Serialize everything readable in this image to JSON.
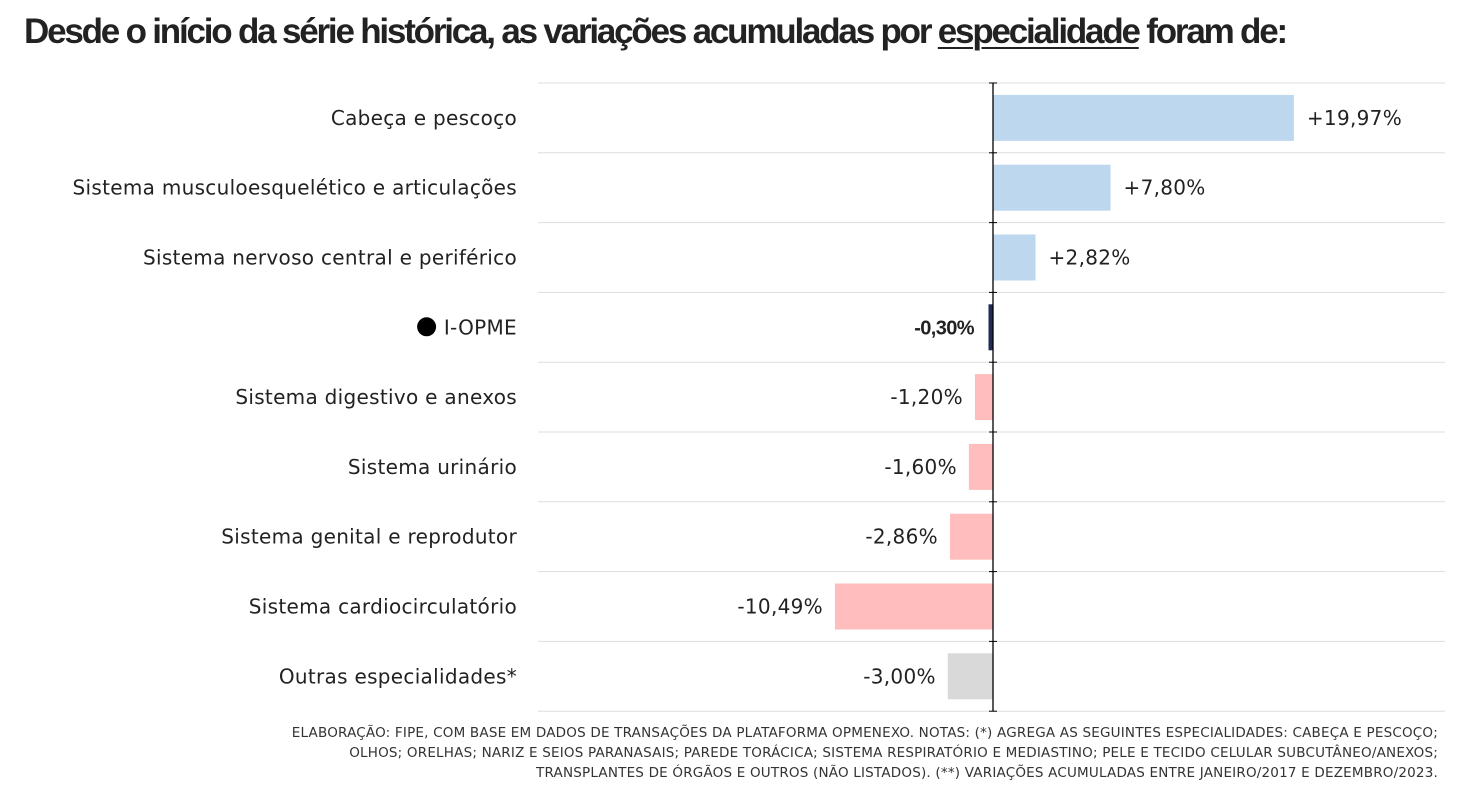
{
  "title": {
    "prefix": "Desde o início da série histórica, as variações acumuladas por ",
    "emphasis": "especialidade",
    "suffix": " foram de:"
  },
  "colors": {
    "positive": "#bdd7ee",
    "negative": "#ffbdbd",
    "highlight": "#1f2d54",
    "other": "#d9d9d9",
    "gridline": "#dddddd",
    "axis": "#000000",
    "text": "#222222"
  },
  "chart_data": {
    "type": "bar",
    "orientation": "horizontal",
    "categories": [
      "Cabeça e pescoço",
      "Sistema musculoesquelético e articulações",
      "Sistema nervoso central e periférico",
      "I-OPME",
      "Sistema digestivo e anexos",
      "Sistema urinário",
      "Sistema genital e reprodutor",
      "Sistema cardiocirculatório",
      "Outras especialidades*"
    ],
    "values": [
      19.97,
      7.8,
      2.82,
      -0.3,
      -1.2,
      -1.6,
      -2.86,
      -10.49,
      -3.0
    ],
    "value_labels": [
      "+19,97%",
      "+7,80%",
      "+2,82%",
      "-0,30%",
      "-1,20%",
      "-1,60%",
      "-2,86%",
      "-10,49%",
      "-3,00%"
    ],
    "highlight_index": 3,
    "other_index": 8,
    "xlim": [
      -30.2,
      30.0
    ],
    "grid": true,
    "legend": "none",
    "xlabel": "",
    "ylabel": ""
  },
  "notes": [
    "ELABORAÇÃO: FIPE, COM BASE EM DADOS DE TRANSAÇÕES DA PLATAFORMA OPMENEXO. NOTAS: (*) AGREGA AS SEGUINTES ESPECIALIDADES: CABEÇA E PESCOÇO;",
    "OLHOS; ORELHAS; NARIZ E SEIOS PARANASAIS; PAREDE TORÁCICA; SISTEMA RESPIRATÓRIO E MEDIASTINO; PELE E TECIDO CELULAR SUBCUTÂNEO/ANEXOS;",
    "TRANSPLANTES DE ÓRGÃOS E OUTROS (NÃO LISTADOS). (**) VARIAÇÕES ACUMULADAS ENTRE JANEIRO/2017 E DEZEMBRO/2023."
  ]
}
